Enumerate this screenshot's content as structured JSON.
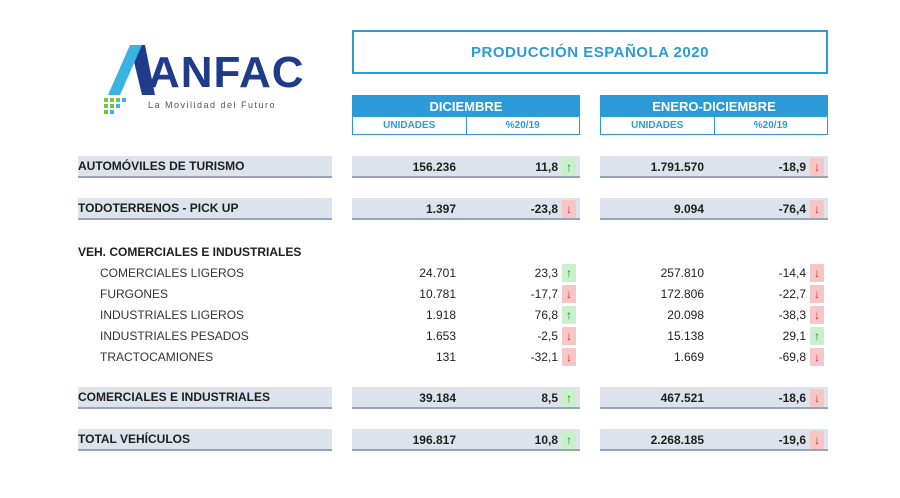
{
  "logo": {
    "wordmark": "ANFAC",
    "tagline": "La Movilidad del Futuro",
    "brand_color": "#1f3b8c",
    "accent_color": "#3bb3e0"
  },
  "title": "PRODUCCIÓN ESPAÑOLA 2020",
  "columns": {
    "december": {
      "label": "DICIEMBRE",
      "units": "UNIDADES",
      "pct": "%20/19"
    },
    "ytd": {
      "label": "ENERO-DICIEMBRE",
      "units": "UNIDADES",
      "pct": "%20/19"
    }
  },
  "rows": [
    {
      "label": "AUTOMÓVILES DE TURISMO",
      "dec_units": "156.236",
      "dec_pct": "11,8",
      "dec_dir": "up",
      "ytd_units": "1.791.570",
      "ytd_pct": "-18,9",
      "ytd_dir": "down"
    },
    {
      "label": "TODOTERRENOS - PICK UP",
      "dec_units": "1.397",
      "dec_pct": "-23,8",
      "dec_dir": "down",
      "ytd_units": "9.094",
      "ytd_pct": "-76,4",
      "ytd_dir": "down"
    },
    {
      "label": "VEH. COMERCIALES E INDUSTRIALES"
    },
    {
      "label": "COMERCIALES LIGEROS",
      "dec_units": "24.701",
      "dec_pct": "23,3",
      "dec_dir": "up",
      "ytd_units": "257.810",
      "ytd_pct": "-14,4",
      "ytd_dir": "down"
    },
    {
      "label": "FURGONES",
      "dec_units": "10.781",
      "dec_pct": "-17,7",
      "dec_dir": "down",
      "ytd_units": "172.806",
      "ytd_pct": "-22,7",
      "ytd_dir": "down"
    },
    {
      "label": "INDUSTRIALES LIGEROS",
      "dec_units": "1.918",
      "dec_pct": "76,8",
      "dec_dir": "up",
      "ytd_units": "20.098",
      "ytd_pct": "-38,3",
      "ytd_dir": "down"
    },
    {
      "label": "INDUSTRIALES PESADOS",
      "dec_units": "1.653",
      "dec_pct": "-2,5",
      "dec_dir": "down",
      "ytd_units": "15.138",
      "ytd_pct": "29,1",
      "ytd_dir": "up"
    },
    {
      "label": "TRACTOCAMIONES",
      "dec_units": "131",
      "dec_pct": "-32,1",
      "dec_dir": "down",
      "ytd_units": "1.669",
      "ytd_pct": "-69,8",
      "ytd_dir": "down"
    },
    {
      "label": "COMERCIALES E INDUSTRIALES",
      "dec_units": "39.184",
      "dec_pct": "8,5",
      "dec_dir": "up",
      "ytd_units": "467.521",
      "ytd_pct": "-18,6",
      "ytd_dir": "down"
    },
    {
      "label": "TOTAL VEHÍCULOS",
      "dec_units": "196.817",
      "dec_pct": "10,8",
      "dec_dir": "up",
      "ytd_units": "2.268.185",
      "ytd_pct": "-19,6",
      "ytd_dir": "down"
    }
  ],
  "arrows": {
    "up": "↑",
    "down": "↓"
  },
  "colors": {
    "header_blue": "#2c9ad6",
    "band_gray": "#dde3ec",
    "up_green": "#c9efcb",
    "down_red": "#f6c6c6"
  }
}
